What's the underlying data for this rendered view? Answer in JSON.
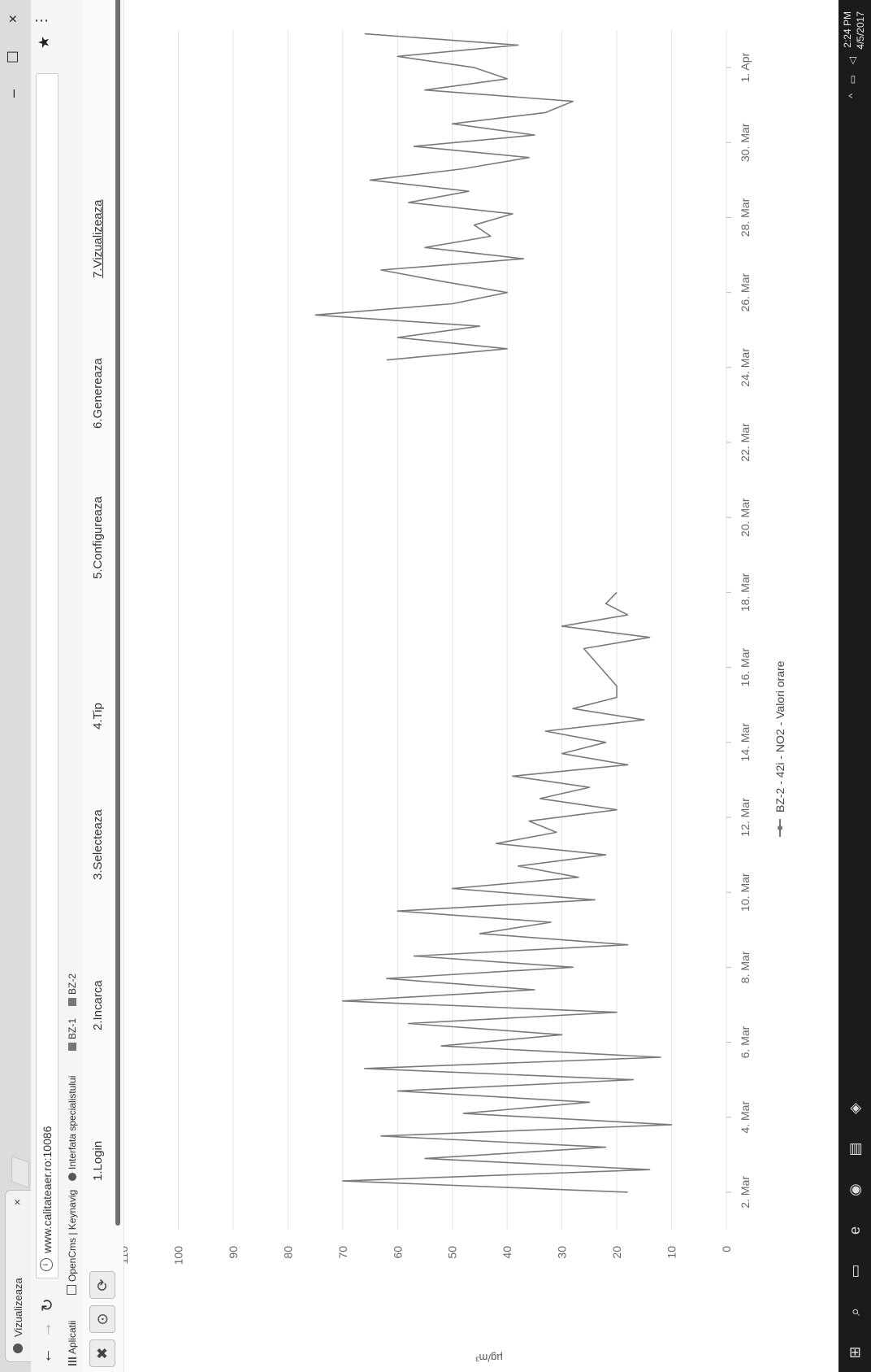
{
  "browser": {
    "tab_title": "Vizualizeaza",
    "tab_close": "×",
    "url": "www.calitateaer.ro:10086",
    "info_icon": "i",
    "bookmarks": [
      "Aplicatii",
      "OpenCms | Keynavig",
      "Interfata specialistului",
      "BZ-1",
      "BZ-2"
    ],
    "window_controls": [
      "–",
      "☐",
      "×"
    ]
  },
  "steps": [
    "1.Login",
    "2.Incarca",
    "3.Selecteaza",
    "4.Tip",
    "5.Configureaza",
    "6.Genereaza",
    "7.Vizualizeaza"
  ],
  "taskbar": {
    "time": "2:24 PM",
    "date": "4/5/2017"
  },
  "chart_data": {
    "type": "line",
    "ylabel": "µg/m³",
    "ylim": [
      0,
      110
    ],
    "y_ticks": [
      0,
      10,
      20,
      30,
      40,
      50,
      60,
      70,
      80,
      90,
      100,
      110
    ],
    "x_tick_labels": [
      "2. Mar",
      "4. Mar",
      "6. Mar",
      "8. Mar",
      "10. Mar",
      "12. Mar",
      "14. Mar",
      "16. Mar",
      "18. Mar",
      "20. Mar",
      "22. Mar",
      "24. Mar",
      "26. Mar",
      "28. Mar",
      "30. Mar",
      "1. Apr"
    ],
    "grid": true,
    "legend_position": "bottom",
    "series": [
      {
        "name": "BZ-2 - 42i - NO2 - Valori orare",
        "color": "#7a7a7a",
        "x": [
          1.0,
          1.3,
          1.6,
          1.9,
          2.2,
          2.5,
          2.8,
          3.1,
          3.4,
          3.7,
          4.0,
          4.3,
          4.6,
          4.9,
          5.2,
          5.5,
          5.8,
          6.1,
          6.4,
          6.7,
          7.0,
          7.3,
          7.6,
          7.9,
          8.2,
          8.5,
          8.8,
          9.1,
          9.4,
          9.7,
          10.0,
          10.3,
          10.6,
          10.9,
          11.2,
          11.5,
          11.8,
          12.1,
          12.4,
          12.7,
          13.0,
          13.3,
          13.6,
          13.9,
          14.2,
          14.5,
          15.5,
          15.8,
          16.1,
          16.4,
          16.7,
          17.0,
          23.2,
          23.5,
          23.8,
          24.1,
          24.4,
          24.7,
          25.0,
          25.3,
          25.6,
          25.9,
          26.2,
          26.5,
          26.8,
          27.1,
          27.4,
          27.7,
          28.0,
          28.3,
          28.6,
          28.9,
          29.2,
          29.5,
          29.8,
          30.1,
          30.4,
          30.7,
          31.0,
          31.3,
          31.6,
          31.9
        ],
        "y": [
          18,
          70,
          14,
          55,
          22,
          63,
          10,
          48,
          25,
          60,
          17,
          66,
          12,
          52,
          30,
          58,
          20,
          70,
          35,
          62,
          28,
          57,
          18,
          45,
          32,
          60,
          24,
          50,
          27,
          38,
          22,
          42,
          31,
          36,
          20,
          34,
          25,
          39,
          18,
          30,
          22,
          33,
          15,
          28,
          20,
          20,
          26,
          14,
          30,
          18,
          22,
          20,
          62,
          40,
          60,
          45,
          75,
          50,
          40,
          52,
          63,
          37,
          55,
          43,
          46,
          39,
          58,
          47,
          65,
          48,
          36,
          57,
          35,
          50,
          33,
          28,
          55,
          40,
          46,
          60,
          38,
          66
        ]
      }
    ]
  }
}
